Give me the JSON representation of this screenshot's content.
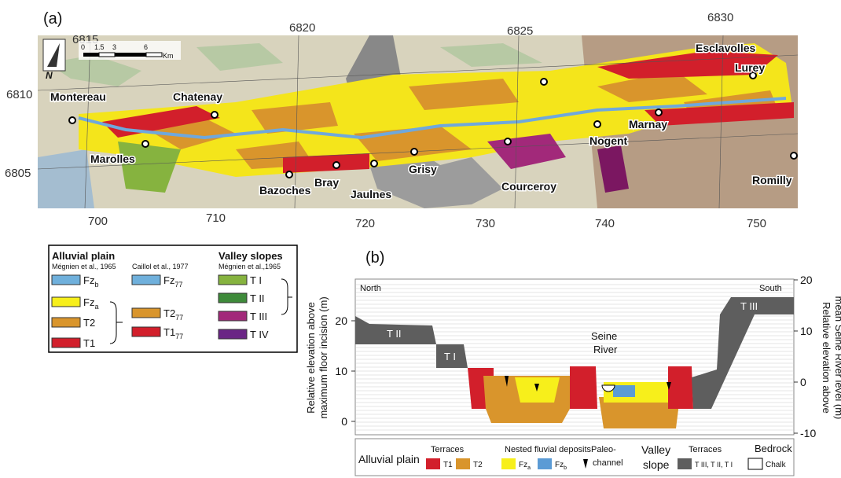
{
  "map": {
    "panel_label": "(a)",
    "grid_top": [
      6815,
      6820,
      6825,
      6830
    ],
    "grid_left": [
      6810,
      6805
    ],
    "grid_bottom": [
      700,
      710,
      720,
      730,
      740,
      750
    ],
    "north": "N",
    "scale": {
      "ticks": [
        0,
        1.5,
        3,
        6
      ],
      "unit": "Km"
    },
    "towns": [
      "Montereau",
      "Chatenay",
      "Marolles",
      "Bazoches",
      "Bray",
      "Jaulnes",
      "Grisy",
      "Courceroy",
      "Nogent",
      "Marnay",
      "Esclavolles",
      "Lurey",
      "Romilly"
    ]
  },
  "legend": {
    "alluvial": {
      "title": "Alluvial plain",
      "source": "Mégnien et al., 1965",
      "items": [
        {
          "main": "Fz",
          "sub": "b"
        },
        {
          "main": "Fz",
          "sub": "a"
        },
        {
          "main": "T2"
        },
        {
          "main": "T1"
        }
      ]
    },
    "caillol": {
      "source": "Caillol et al., 1977",
      "items": [
        {
          "main": "Fz",
          "sub": "77"
        },
        {
          "main": "T2",
          "sub": "77"
        },
        {
          "main": "T1",
          "sub": "77"
        }
      ]
    },
    "slopes": {
      "title": "Valley slopes",
      "source": "Mégnien et al.,1965",
      "items": [
        "T I",
        "T II",
        "T III",
        "T IV"
      ]
    }
  },
  "section": {
    "panel_label": "(b)",
    "north": "North",
    "south": "South",
    "river": [
      "Seine",
      "River"
    ],
    "left_axis": {
      "label": [
        "Relative elevation above",
        "maximum floor incision (m)"
      ],
      "ticks": [
        0,
        10,
        20
      ]
    },
    "right_axis": {
      "label": [
        "Relative elevation above",
        "mean Seine River level (m)"
      ],
      "ticks": [
        20,
        10,
        0,
        -10
      ]
    },
    "terraces": [
      "T II",
      "T I",
      "T III"
    ],
    "legend": {
      "alluvial": "Alluvial plain",
      "terraces": "Terraces",
      "t1": "T1",
      "t2": "T2",
      "nested": "Nested fluvial deposits",
      "fza": {
        "main": "Fz",
        "sub": "a"
      },
      "fzb": {
        "main": "Fz",
        "sub": "b"
      },
      "paleo": [
        "Paleo-",
        "channel"
      ],
      "valley": [
        "Valley",
        "slope"
      ],
      "terraces2": "Terraces",
      "slope_terraces": "T III, T II, T I",
      "bedrock": "Bedrock",
      "chalk": "Chalk"
    }
  }
}
